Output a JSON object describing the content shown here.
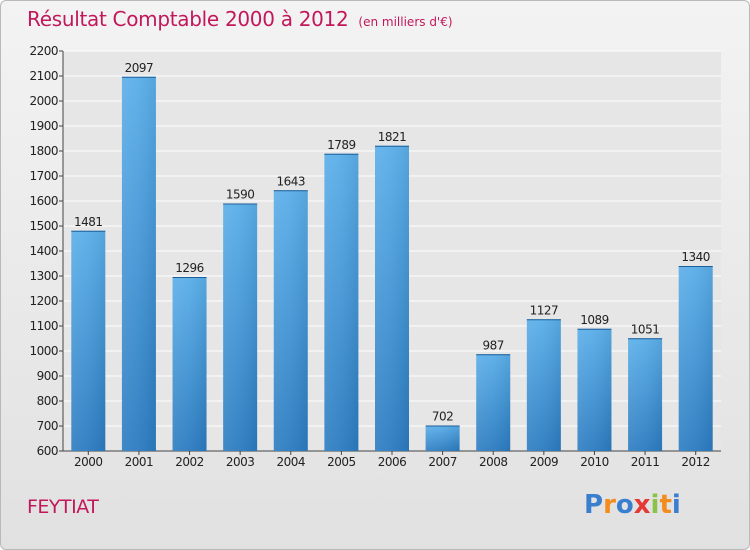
{
  "header": {
    "title": "Résultat Comptable 2000 à 2012",
    "unit": "(en milliers d'€)"
  },
  "footer": {
    "commune": "FEYTIAT"
  },
  "logo": {
    "text": "Proxiti",
    "letters": [
      {
        "char": "P",
        "color": "#3a7fcf"
      },
      {
        "char": "r",
        "color": "#f28c1e"
      },
      {
        "char": "o",
        "color": "#3a7fcf"
      },
      {
        "char": "x",
        "color": "#e53935"
      },
      {
        "char": "i",
        "color": "#8bc34a"
      },
      {
        "char": "t",
        "color": "#f28c1e"
      },
      {
        "char": "i",
        "color": "#3a7fcf"
      }
    ]
  },
  "colors": {
    "title": "#c2185b",
    "bar_top": "#5aaee9",
    "bar_bottom": "#2b7bc0",
    "grid": "#ffffff",
    "plot_bg": "#e6e6e6"
  },
  "chart_data": {
    "type": "bar",
    "title": "Résultat Comptable 2000 à 2012",
    "ylabel": "en milliers d'€",
    "xlabel": "",
    "categories": [
      "2000",
      "2001",
      "2002",
      "2003",
      "2004",
      "2005",
      "2006",
      "2007",
      "2008",
      "2009",
      "2010",
      "2011",
      "2012"
    ],
    "values": [
      1481,
      2097,
      1296,
      1590,
      1643,
      1789,
      1821,
      702,
      987,
      1127,
      1089,
      1051,
      1340
    ],
    "ylim": [
      600,
      2200
    ],
    "yticks": [
      600,
      700,
      800,
      900,
      1000,
      1100,
      1200,
      1300,
      1400,
      1500,
      1600,
      1700,
      1800,
      1900,
      2000,
      2100,
      2200
    ],
    "grid": true,
    "legend": "none"
  }
}
